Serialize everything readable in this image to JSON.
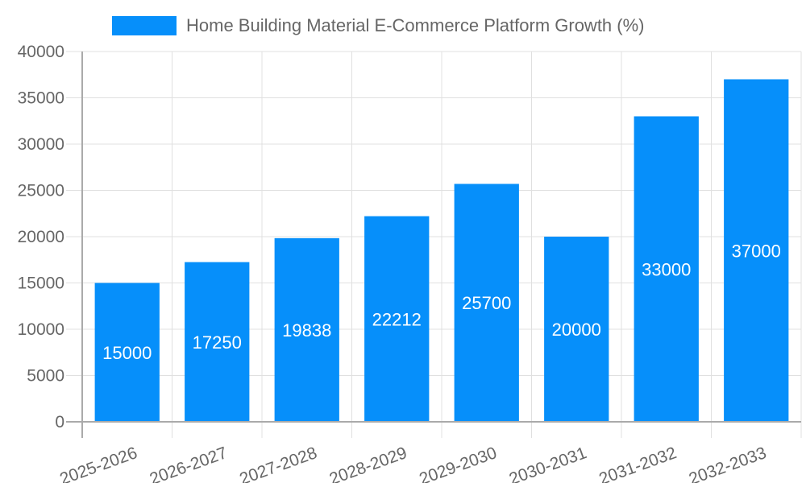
{
  "chart_data": {
    "type": "bar",
    "title": "",
    "xlabel": "",
    "ylabel": "",
    "categories": [
      "2025-2026",
      "2026-2027",
      "2027-2028",
      "2028-2029",
      "2029-2030",
      "2030-2031",
      "2031-2032",
      "2032-2033"
    ],
    "series": [
      {
        "name": "Home Building Material E-Commerce Platform Growth (%)",
        "values": [
          15000,
          17250,
          19838,
          22212,
          25700,
          20000,
          33000,
          37000
        ],
        "color": "#068FFA"
      }
    ],
    "ylim": [
      0,
      40000
    ],
    "yticks": [
      0,
      5000,
      10000,
      15000,
      20000,
      25000,
      30000,
      35000,
      40000
    ],
    "grid": true,
    "legend_position": "top",
    "data_labels": true,
    "x_tick_rotation": -20
  },
  "legend": {
    "label": "Home Building Material E-Commerce Platform Growth (%)",
    "color": "#068FFA"
  },
  "colors": {
    "bar": "#068FFA",
    "grid": "#e0e0e0",
    "axis": "#aaaaaa",
    "tick_text": "#666666",
    "data_label": "#ffffff"
  }
}
